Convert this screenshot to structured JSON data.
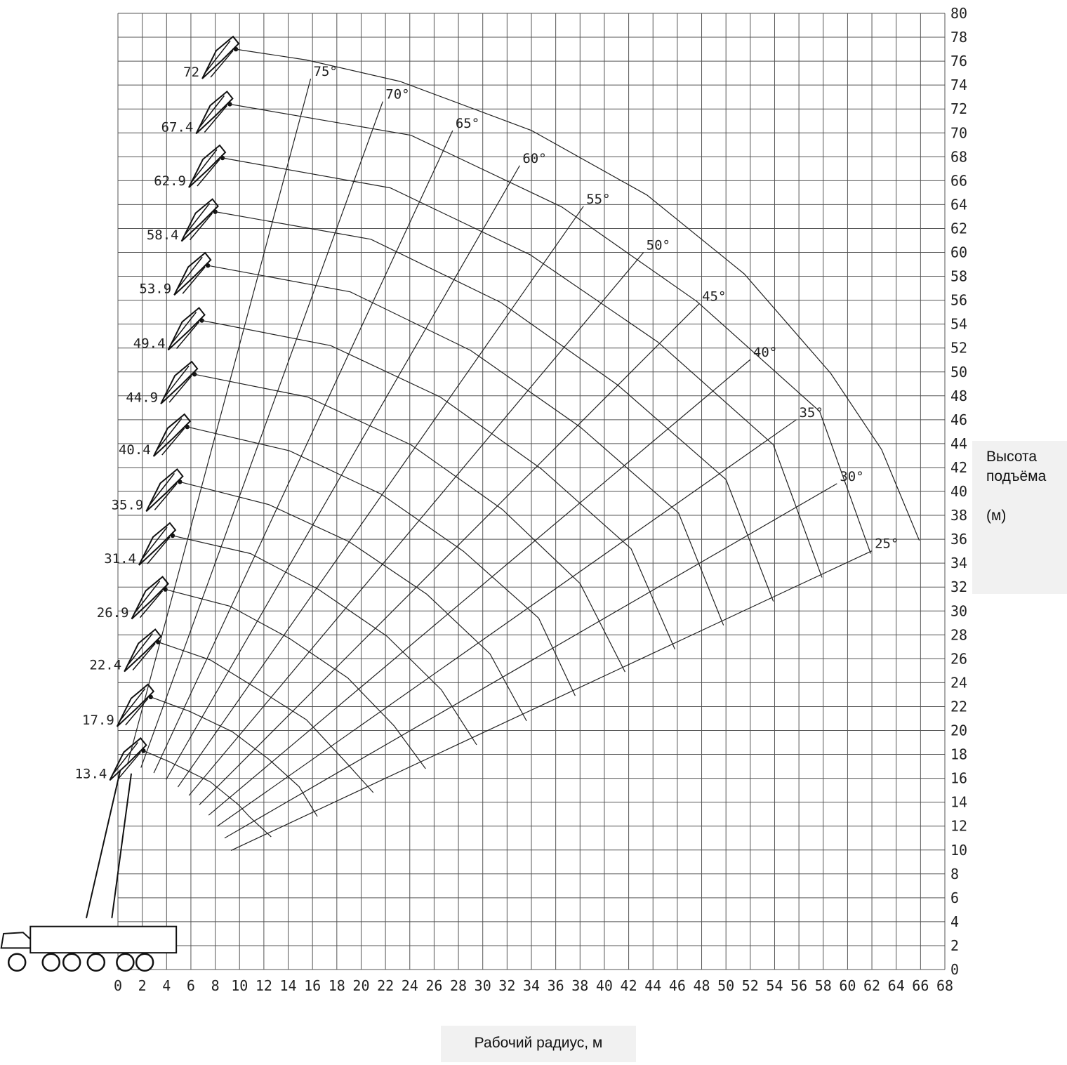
{
  "chart_data": {
    "type": "line",
    "title": "",
    "xlabel": "Рабочий радиус, м",
    "ylabel_lines": [
      "Высота",
      "подъёма",
      "(м)"
    ],
    "xlim": [
      0,
      68
    ],
    "ylim": [
      0,
      80
    ],
    "x_ticks": [
      "0",
      "2",
      "4",
      "6",
      "8",
      "10",
      "12",
      "14",
      "16",
      "18",
      "20",
      "22",
      "24",
      "26",
      "28",
      "30",
      "32",
      "34",
      "36",
      "38",
      "40",
      "42",
      "44",
      "46",
      "48",
      "50",
      "52",
      "54",
      "56",
      "58",
      "60",
      "62",
      "64",
      "66",
      "68"
    ],
    "y_ticks": [
      "0",
      "2",
      "4",
      "6",
      "8",
      "10",
      "12",
      "14",
      "16",
      "18",
      "20",
      "22",
      "24",
      "26",
      "28",
      "30",
      "32",
      "34",
      "36",
      "38",
      "40",
      "42",
      "44",
      "46",
      "48",
      "50",
      "52",
      "54",
      "56",
      "58",
      "60",
      "62",
      "64",
      "66",
      "68",
      "70",
      "72",
      "74",
      "76",
      "78",
      "80"
    ],
    "grid": true,
    "boom_lengths": [
      "13.4",
      "17.9",
      "22.4",
      "26.9",
      "31.4",
      "35.9",
      "40.4",
      "44.9",
      "49.4",
      "53.9",
      "58.4",
      "62.9",
      "67.4",
      "72"
    ],
    "angle_labels": [
      "75°",
      "70°",
      "65°",
      "60°",
      "55°",
      "50°",
      "45°",
      "40°",
      "35°",
      "30°",
      "25°"
    ],
    "series": [
      {
        "boom": 13.4,
        "points": [
          [
            2.1,
            18.3
          ],
          [
            4.2,
            17.4
          ],
          [
            7.6,
            15.7
          ],
          [
            9.9,
            13.8
          ],
          [
            10.8,
            12.8
          ],
          [
            12.6,
            11.1
          ]
        ]
      },
      {
        "boom": 17.9,
        "points": [
          [
            2.7,
            22.8
          ],
          [
            5.9,
            21.6
          ],
          [
            9.4,
            19.9
          ],
          [
            12.4,
            17.6
          ],
          [
            14.9,
            15.3
          ],
          [
            16.4,
            12.8
          ]
        ]
      },
      {
        "boom": 22.4,
        "points": [
          [
            3.3,
            27.4
          ],
          [
            7.6,
            25.9
          ],
          [
            11.6,
            23.4
          ],
          [
            15.5,
            20.9
          ],
          [
            18.7,
            17.4
          ],
          [
            21.0,
            14.8
          ]
        ]
      },
      {
        "boom": 26.9,
        "points": [
          [
            3.9,
            31.8
          ],
          [
            9.2,
            30.4
          ],
          [
            14.1,
            27.7
          ],
          [
            18.9,
            24.4
          ],
          [
            22.7,
            20.4
          ],
          [
            25.3,
            16.8
          ]
        ]
      },
      {
        "boom": 31.4,
        "points": [
          [
            4.5,
            36.3
          ],
          [
            10.9,
            34.8
          ],
          [
            16.5,
            31.8
          ],
          [
            22.1,
            27.9
          ],
          [
            26.6,
            23.4
          ],
          [
            29.5,
            18.8
          ]
        ]
      },
      {
        "boom": 35.9,
        "points": [
          [
            5.1,
            40.8
          ],
          [
            12.4,
            38.9
          ],
          [
            19.0,
            35.8
          ],
          [
            25.4,
            31.4
          ],
          [
            30.6,
            26.4
          ],
          [
            33.6,
            20.8
          ]
        ]
      },
      {
        "boom": 40.4,
        "points": [
          [
            5.7,
            45.4
          ],
          [
            14.1,
            43.4
          ],
          [
            21.6,
            39.8
          ],
          [
            28.4,
            35.0
          ],
          [
            34.6,
            29.4
          ],
          [
            37.6,
            22.9
          ]
        ]
      },
      {
        "boom": 44.9,
        "points": [
          [
            6.3,
            49.8
          ],
          [
            15.6,
            47.9
          ],
          [
            24.1,
            43.9
          ],
          [
            31.6,
            38.5
          ],
          [
            38.0,
            32.3
          ],
          [
            41.7,
            24.9
          ]
        ]
      },
      {
        "boom": 49.4,
        "points": [
          [
            6.9,
            54.3
          ],
          [
            17.5,
            52.2
          ],
          [
            26.5,
            47.9
          ],
          [
            34.8,
            41.9
          ],
          [
            42.2,
            35.2
          ],
          [
            45.8,
            26.8
          ]
        ]
      },
      {
        "boom": 53.9,
        "points": [
          [
            7.4,
            58.9
          ],
          [
            19.1,
            56.7
          ],
          [
            29.0,
            51.8
          ],
          [
            38.0,
            45.4
          ],
          [
            46.1,
            38.2
          ],
          [
            49.8,
            28.8
          ]
        ]
      },
      {
        "boom": 58.4,
        "points": [
          [
            8.0,
            63.4
          ],
          [
            20.8,
            61.1
          ],
          [
            31.5,
            55.8
          ],
          [
            41.1,
            48.9
          ],
          [
            50.0,
            41.0
          ],
          [
            53.9,
            30.8
          ]
        ]
      },
      {
        "boom": 62.9,
        "points": [
          [
            8.6,
            67.9
          ],
          [
            22.4,
            65.4
          ],
          [
            33.9,
            59.8
          ],
          [
            44.4,
            52.5
          ],
          [
            53.9,
            43.9
          ],
          [
            57.9,
            32.8
          ]
        ]
      },
      {
        "boom": 67.4,
        "points": [
          [
            9.2,
            72.4
          ],
          [
            24.1,
            69.8
          ],
          [
            36.5,
            63.8
          ],
          [
            47.6,
            55.9
          ],
          [
            57.7,
            46.7
          ],
          [
            61.9,
            34.8
          ]
        ]
      },
      {
        "boom": 72,
        "points": [
          [
            9.7,
            77.0
          ],
          [
            15.5,
            76.1
          ],
          [
            23.2,
            74.3
          ],
          [
            34.0,
            70.2
          ],
          [
            43.5,
            64.8
          ],
          [
            51.5,
            58.2
          ],
          [
            58.6,
            49.9
          ],
          [
            62.8,
            43.5
          ],
          [
            65.9,
            35.9
          ]
        ]
      }
    ]
  }
}
